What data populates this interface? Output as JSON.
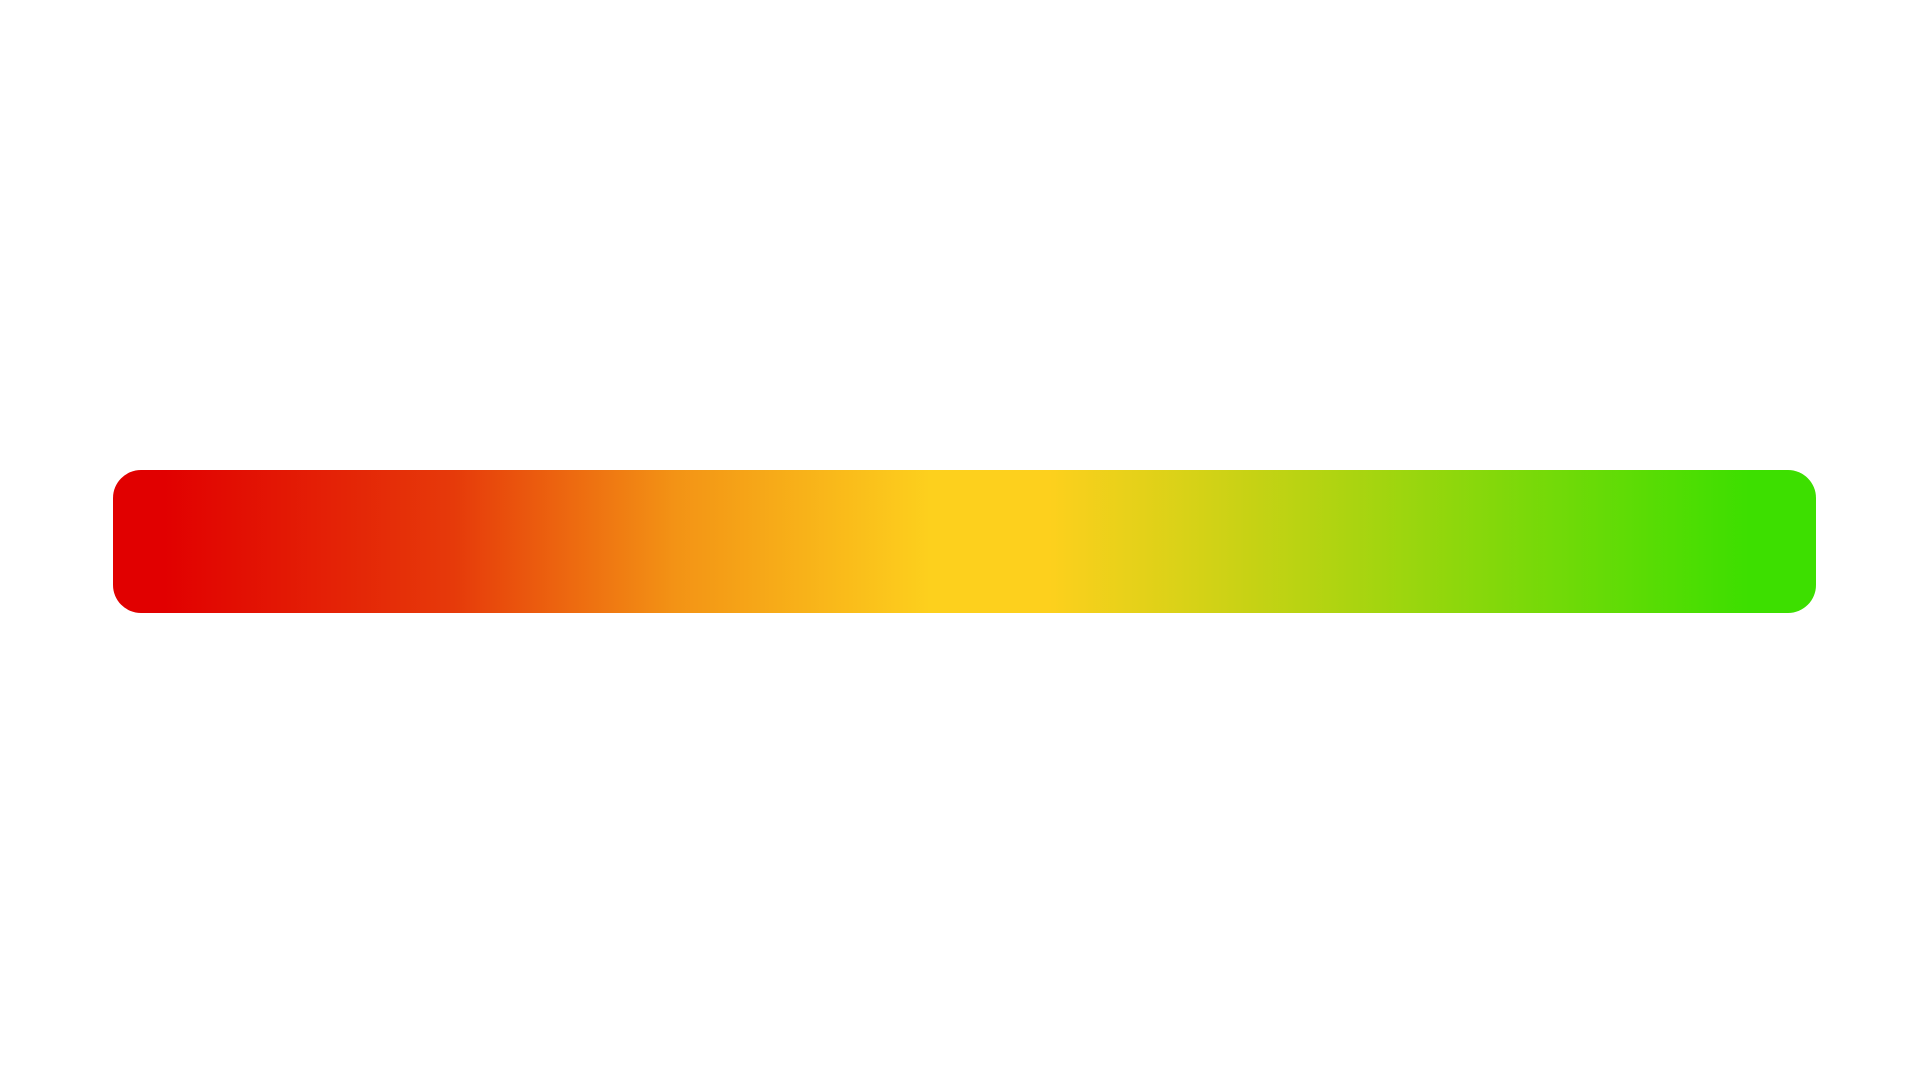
{
  "background_color": "#ffffff",
  "gradient_bar": {
    "colors": {
      "red": "#e10000",
      "red_orange": "#e63a0a",
      "orange": "#f39315",
      "yellow": "#fdd01d",
      "yellow_green": "#b8d312",
      "green": "#3ddf00"
    }
  }
}
